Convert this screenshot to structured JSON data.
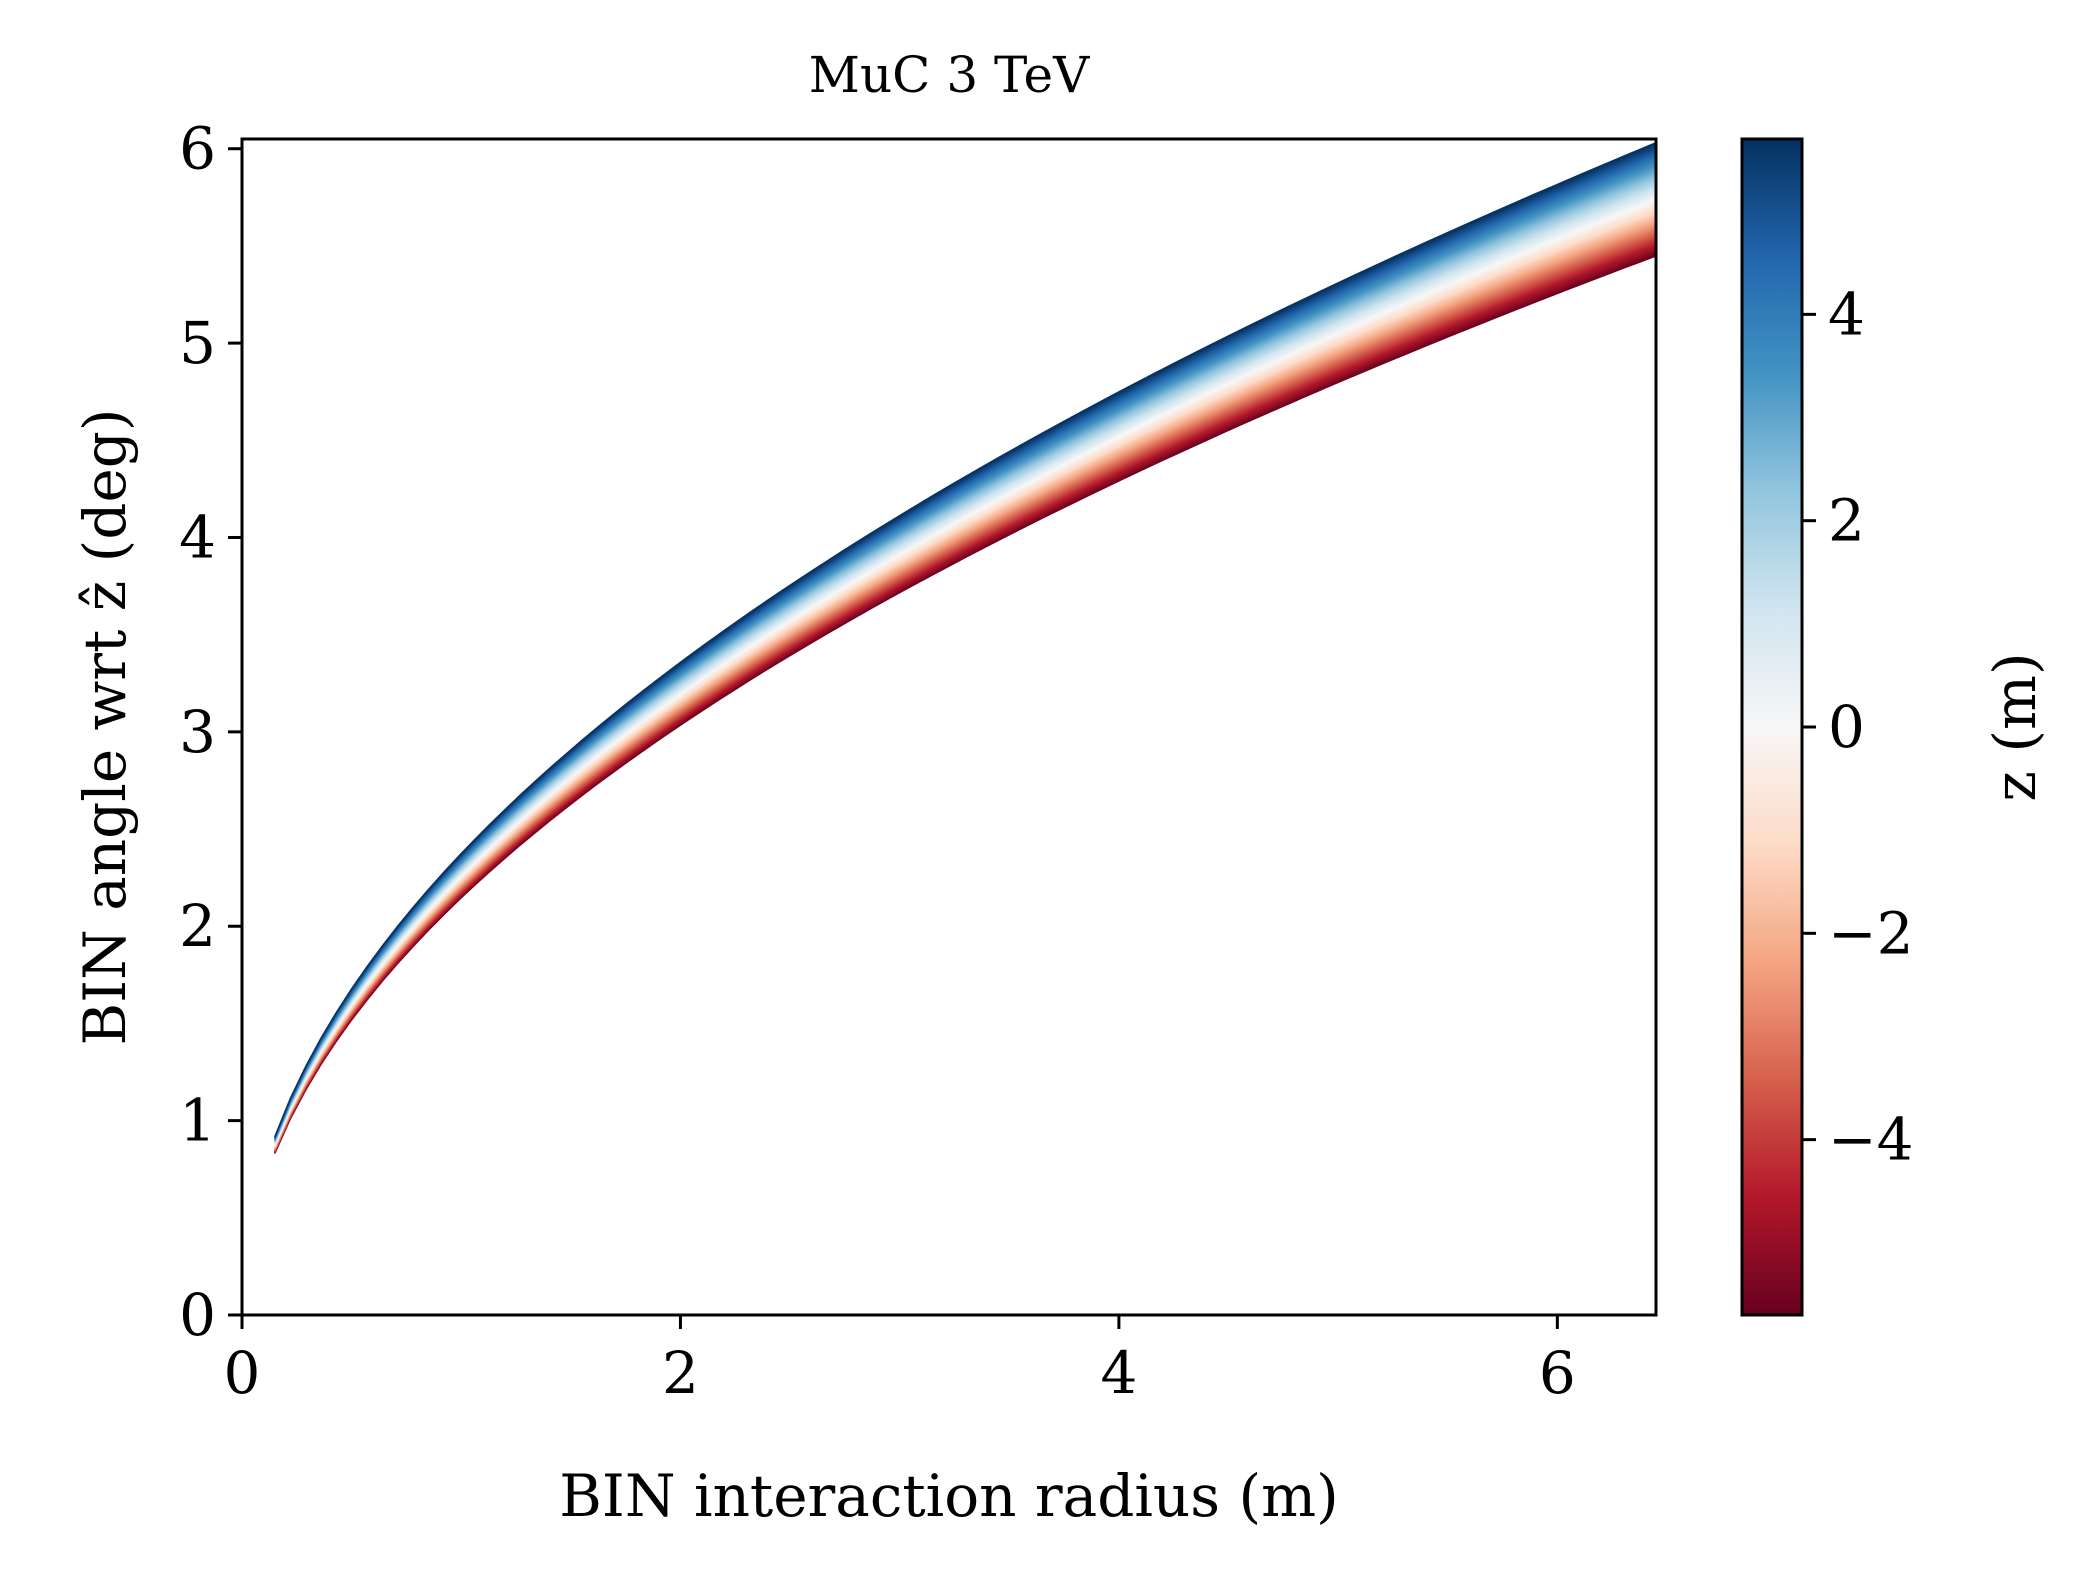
{
  "chart_data": {
    "type": "heatmap",
    "title": "MuC 3 TeV",
    "xlabel": "BIN interaction radius (m)",
    "ylabel": "BIN angle wrt ẑ (deg)",
    "xlim": [
      0,
      6.45
    ],
    "ylim": [
      0,
      6.05
    ],
    "xticks": [
      0,
      2,
      4,
      6
    ],
    "xtick_labels": [
      "0",
      "2",
      "4",
      "6"
    ],
    "yticks": [
      0,
      1,
      2,
      3,
      4,
      5,
      6
    ],
    "ytick_labels": [
      "0",
      "1",
      "2",
      "3",
      "4",
      "5",
      "6"
    ],
    "grid": false,
    "band": {
      "description_values": "angle (deg) = coef * sqrt(radius) at constant z",
      "radius_range": [
        0.15,
        6.45
      ],
      "upper_edge_coef": 2.375,
      "lower_edge_coef": 2.145,
      "z_at_upper_edge": 5.7,
      "z_at_lower_edge": -5.7
    },
    "colorbar": {
      "label": "z (m)",
      "colormap": "RdBu",
      "range": [
        -5.7,
        5.7
      ],
      "ticks": [
        -4,
        -2,
        0,
        2,
        4
      ],
      "tick_labels": [
        "−4",
        "−2",
        "0",
        "2",
        "4"
      ],
      "colors": [
        "#67001f",
        "#b2182b",
        "#d6604d",
        "#f4a582",
        "#fddbc7",
        "#f7f7f7",
        "#d1e5f0",
        "#92c5de",
        "#4393c3",
        "#2166ac",
        "#053061"
      ]
    }
  }
}
